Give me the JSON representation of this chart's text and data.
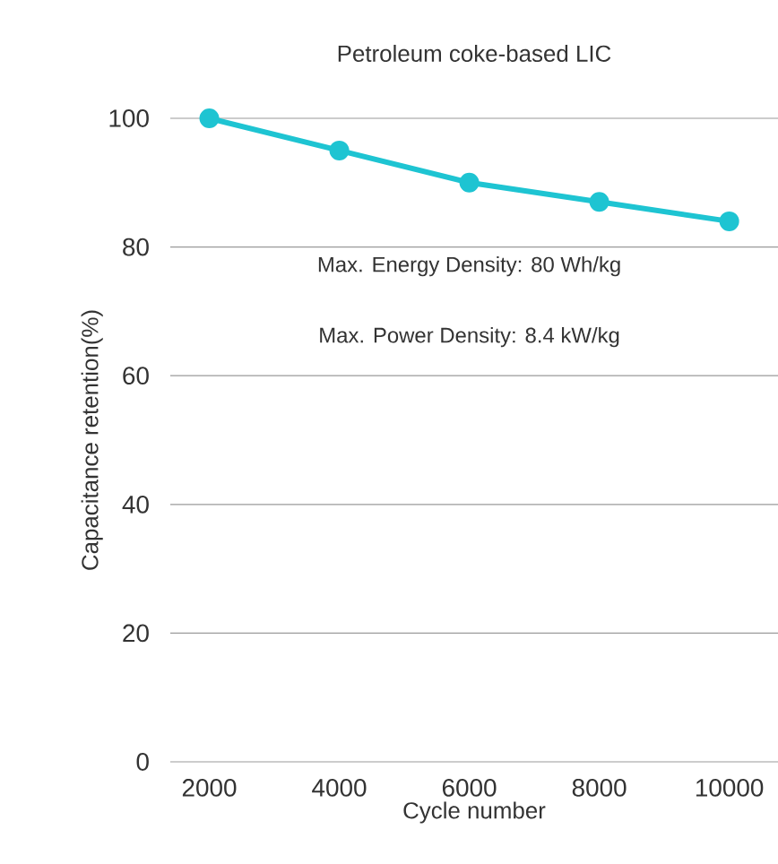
{
  "chart_data": {
    "type": "line",
    "title": "Petroleum coke-based LIC",
    "xlabel": "Cycle number",
    "ylabel": "Capacitance retention(%)",
    "x": [
      2000,
      4000,
      6000,
      8000,
      10000
    ],
    "series": [
      {
        "color": "#1ec4d2",
        "values": [
          100,
          95,
          90,
          87,
          84
        ]
      }
    ],
    "xlim": [
      1400,
      10750
    ],
    "xticks": [
      2000,
      4000,
      6000,
      8000,
      10000
    ],
    "ylim": [
      0,
      100
    ],
    "yticks": [
      0,
      20,
      40,
      60,
      80,
      100
    ],
    "grid": "y",
    "marker": "circle",
    "line_style": "solid",
    "annotations": [
      "Max. Energy Density: 80 Wh/kg",
      "Max. Power Density: 8.4 kW/kg"
    ]
  }
}
